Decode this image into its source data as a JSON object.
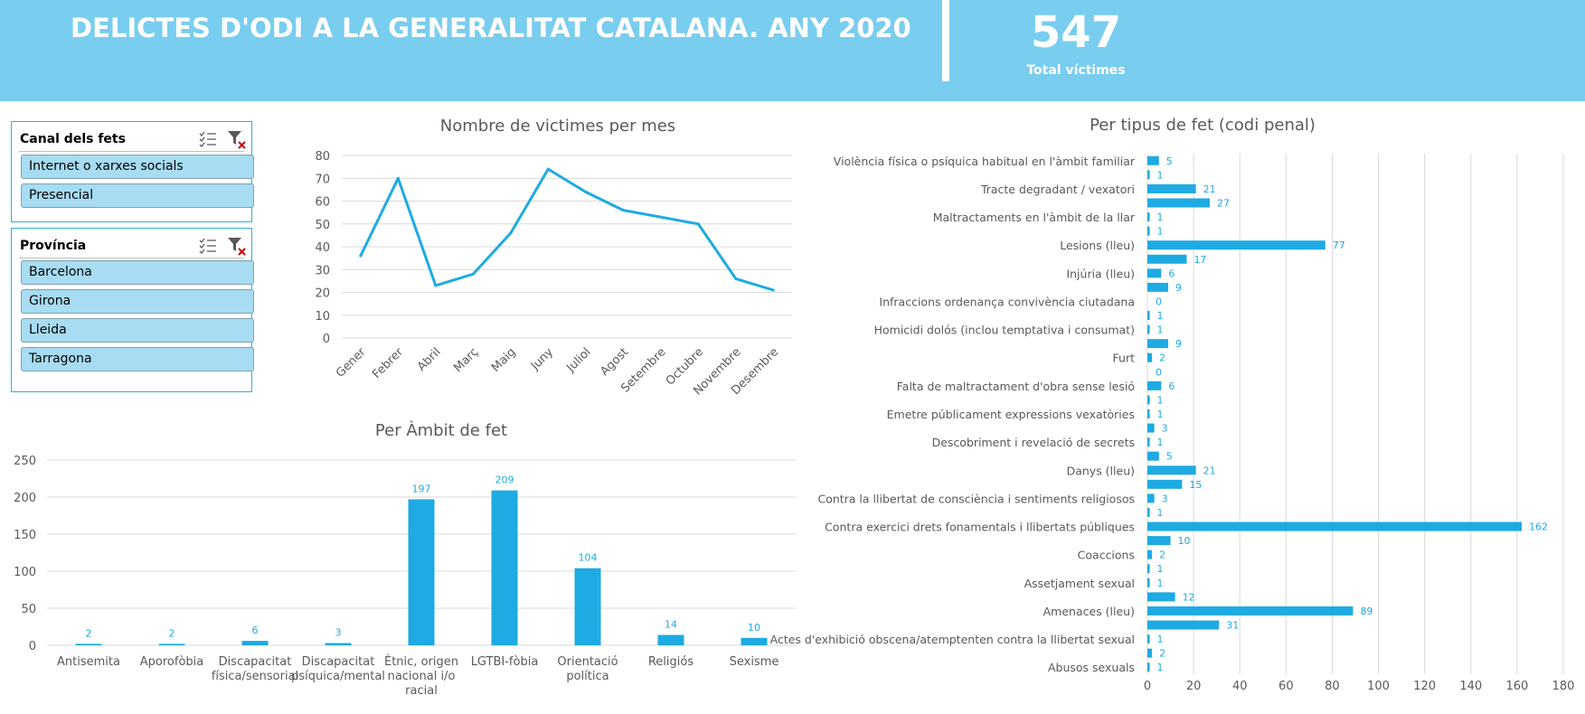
{
  "header": {
    "title": "DELICTES D'ODI A LA GENERALITAT CATALANA. ANY 2020",
    "kpi_value": "547",
    "kpi_label": "Total víctimes"
  },
  "slicers": [
    {
      "title": "Canal dels fets",
      "items": [
        "Internet o xarxes socials",
        "Presencial"
      ]
    },
    {
      "title": "Província",
      "items": [
        "Barcelona",
        "Girona",
        "Lleida",
        "Tarragona"
      ]
    }
  ],
  "colors": {
    "header": "#79cdef",
    "series": "#1eaae2",
    "grid": "#d9d9d9",
    "axis_text": "#595959",
    "label": "#1eaae2"
  },
  "chart_data": [
    {
      "type": "line",
      "title": "Nombre de victimes per mes",
      "categories": [
        "Gener",
        "Febrer",
        "Abril",
        "Març",
        "Maig",
        "Juny",
        "Juliol",
        "Agost",
        "Setembre",
        "Octubre",
        "Novembre",
        "Desembre"
      ],
      "values": [
        36,
        70,
        23,
        28,
        46,
        74,
        64,
        56,
        53,
        50,
        26,
        21
      ],
      "ylim": [
        0,
        80
      ],
      "yticks": [
        0,
        10,
        20,
        30,
        40,
        50,
        60,
        70,
        80
      ],
      "grid": true
    },
    {
      "type": "bar",
      "title": "Per Àmbit de fet",
      "categories": [
        [
          "Antisemita"
        ],
        [
          "Aporofòbia"
        ],
        [
          "Discapacitat",
          "física/sensorial"
        ],
        [
          "Discapacitat",
          "psíquica/mental"
        ],
        [
          "Ètnic, origen",
          "nacional i/o",
          "racial"
        ],
        [
          "LGTBI-fòbia"
        ],
        [
          "Orientació",
          "política"
        ],
        [
          "Religiós"
        ],
        [
          "Sexisme"
        ]
      ],
      "values": [
        2,
        2,
        6,
        3,
        197,
        209,
        104,
        14,
        10
      ],
      "ylim": [
        0,
        250
      ],
      "yticks": [
        0,
        50,
        100,
        150,
        200,
        250
      ],
      "grid": true
    },
    {
      "type": "bar",
      "orientation": "horizontal",
      "title": "Per tipus de fet (codi penal)",
      "categories": [
        "Violència física o psíquica habitual en l'àmbit familiar",
        "",
        "Tracte degradant / vexatori",
        "",
        "Maltractaments en l'àmbit de la llar",
        "",
        "Lesions (lleu)",
        "",
        "Injúria (lleu)",
        "",
        "Infraccions ordenança convivència ciutadana",
        "",
        "Homicidi dolós (inclou temptativa i consumat)",
        "",
        "Furt",
        "",
        "Falta de maltractament d'obra sense lesió",
        "",
        "Emetre públicament expressions vexatòries",
        "",
        "Descobriment i revelació de secrets",
        "",
        "Danys (lleu)",
        "",
        "Contra la llibertat de consciència i sentiments religiosos",
        "",
        "Contra exercici drets fonamentals i llibertats públiques",
        "",
        "Coaccions",
        "",
        "Assetjament sexual",
        "",
        "Amenaces (lleu)",
        "",
        "Actes d'exhibició obscena/atemptenten contra la llibertat sexual",
        "",
        "Abusos sexuals"
      ],
      "values": [
        5,
        1,
        21,
        27,
        1,
        1,
        77,
        17,
        6,
        9,
        0,
        1,
        1,
        9,
        2,
        0,
        6,
        1,
        1,
        3,
        1,
        5,
        21,
        15,
        3,
        1,
        162,
        10,
        2,
        1,
        1,
        12,
        89,
        31,
        1,
        2,
        1
      ],
      "xlim": [
        0,
        180
      ],
      "xticks": [
        0,
        20,
        40,
        60,
        80,
        100,
        120,
        140,
        160,
        180
      ],
      "grid": true
    }
  ]
}
